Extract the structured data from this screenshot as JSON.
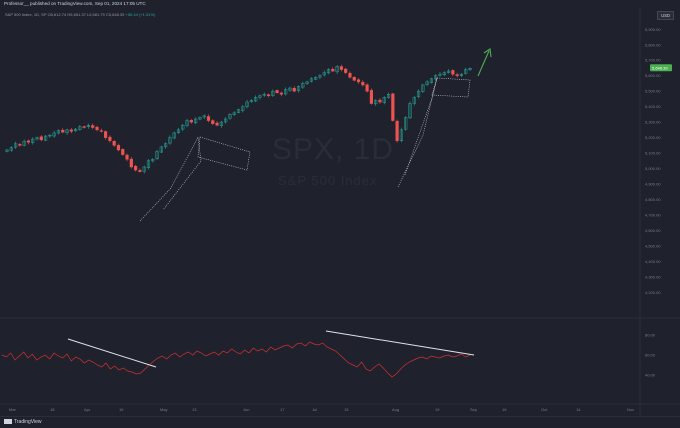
{
  "header": {
    "publisher": "Professor__ published on TradingView.com, Sep 01, 2024 17:05 UTC"
  },
  "symbol_line": {
    "name": "S&P 500 Index, 1D, SP",
    "open": "O5,612.74",
    "high": "H5,651.37",
    "low": "L5,581.79",
    "close": "C5,648.39",
    "change": "+56.44 (+1.01%)"
  },
  "currency": "USD",
  "watermark": {
    "ticker": "SPX, 1D",
    "name": "S&P 500 Index"
  },
  "footer": {
    "brand": "TradingView"
  },
  "colors": {
    "background": "#1f222d",
    "up": "#26a69a",
    "down": "#ef5350",
    "price_tag": "#4caf50",
    "rsi": "#d32f2f",
    "arrow": "#4caf50"
  },
  "chart_data": {
    "type": "candlestick",
    "price_axis": [
      "5,900.00",
      "5,800.00",
      "5,700.00",
      "5,600.00",
      "5,500.00",
      "5,400.00",
      "5,300.00",
      "5,200.00",
      "5,100.00",
      "5,000.00",
      "4,900.00",
      "4,800.00",
      "4,700.00",
      "4,600.00",
      "4,500.00",
      "4,400.00",
      "4,300.00",
      "4,200.00"
    ],
    "price_range": [
      4150,
      5960
    ],
    "last_price": "5,648.39",
    "rsi_axis": [
      "80.00",
      "60.00",
      "40.00"
    ],
    "rsi_range": [
      30,
      90
    ],
    "time_axis": [
      "Mar",
      "18",
      "Apr",
      "15",
      "May",
      "13",
      "Jun",
      "17",
      "Jul",
      "15",
      "Aug",
      "19",
      "Sep",
      "16",
      "Oct",
      "14",
      "Nov"
    ],
    "close_series": [
      5120,
      5135,
      5160,
      5150,
      5175,
      5170,
      5190,
      5200,
      5185,
      5210,
      5215,
      5230,
      5245,
      5235,
      5250,
      5240,
      5255,
      5270,
      5265,
      5280,
      5265,
      5250,
      5240,
      5200,
      5180,
      5150,
      5120,
      5090,
      5060,
      5010,
      4990,
      4980,
      5010,
      5050,
      5060,
      5110,
      5140,
      5160,
      5200,
      5230,
      5250,
      5280,
      5310,
      5300,
      5320,
      5330,
      5340,
      5310,
      5290,
      5280,
      5300,
      5320,
      5350,
      5360,
      5380,
      5400,
      5430,
      5440,
      5460,
      5470,
      5480,
      5470,
      5500,
      5490,
      5480,
      5510,
      5520,
      5500,
      5530,
      5550,
      5560,
      5580,
      5590,
      5600,
      5620,
      5640,
      5630,
      5660,
      5640,
      5620,
      5590,
      5570,
      5560,
      5540,
      5500,
      5420,
      5440,
      5430,
      5460,
      5480,
      5310,
      5180,
      5250,
      5330,
      5420,
      5460,
      5500,
      5540,
      5560,
      5580,
      5600,
      5610,
      5620,
      5630,
      5610,
      5600,
      5610,
      5640,
      5648
    ],
    "rsi_series": [
      60,
      58,
      62,
      55,
      59,
      63,
      57,
      61,
      55,
      58,
      60,
      56,
      62,
      59,
      57,
      61,
      54,
      58,
      56,
      52,
      55,
      53,
      50,
      48,
      52,
      46,
      49,
      45,
      47,
      44,
      43,
      41,
      42,
      46,
      50,
      54,
      57,
      59,
      56,
      60,
      62,
      58,
      61,
      63,
      60,
      64,
      62,
      59,
      61,
      63,
      60,
      64,
      62,
      66,
      63,
      61,
      65,
      62,
      67,
      64,
      66,
      63,
      68,
      65,
      67,
      69,
      70,
      67,
      71,
      72,
      69,
      73,
      71,
      70,
      72,
      68,
      66,
      64,
      60,
      56,
      52,
      50,
      48,
      53,
      46,
      44,
      48,
      51,
      47,
      42,
      38,
      41,
      46,
      50,
      53,
      55,
      57,
      58,
      56,
      59,
      58,
      57,
      59,
      60,
      58,
      59,
      61,
      58,
      60
    ]
  }
}
